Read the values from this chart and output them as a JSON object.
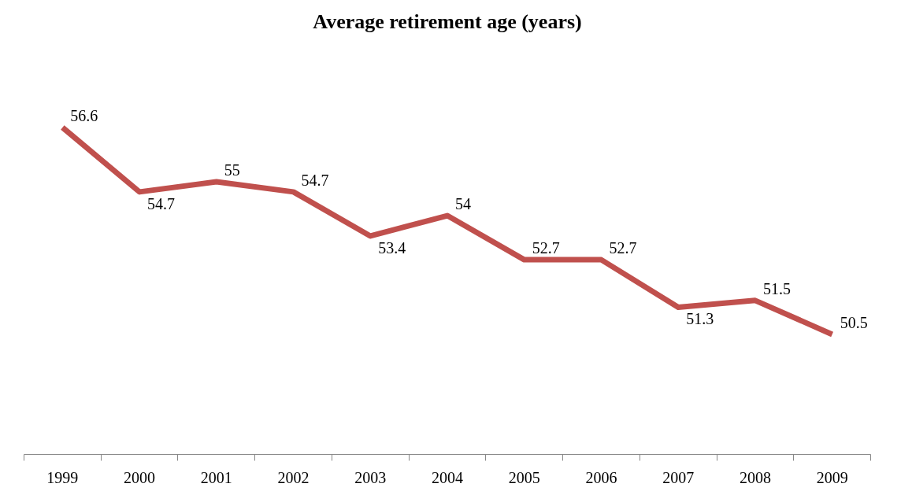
{
  "chart_data": {
    "type": "line",
    "title": "Average retirement age (years)",
    "categories": [
      "1999",
      "2000",
      "2001",
      "2002",
      "2003",
      "2004",
      "2005",
      "2006",
      "2007",
      "2008",
      "2009"
    ],
    "series": [
      {
        "color": "#c0504d",
        "values": [
          56.6,
          54.7,
          55,
          54.7,
          53.4,
          54,
          52.7,
          52.7,
          51.3,
          51.5,
          50.5
        ]
      }
    ],
    "data_labels": true,
    "grid": false,
    "marker": "none",
    "line_style": "solid"
  }
}
